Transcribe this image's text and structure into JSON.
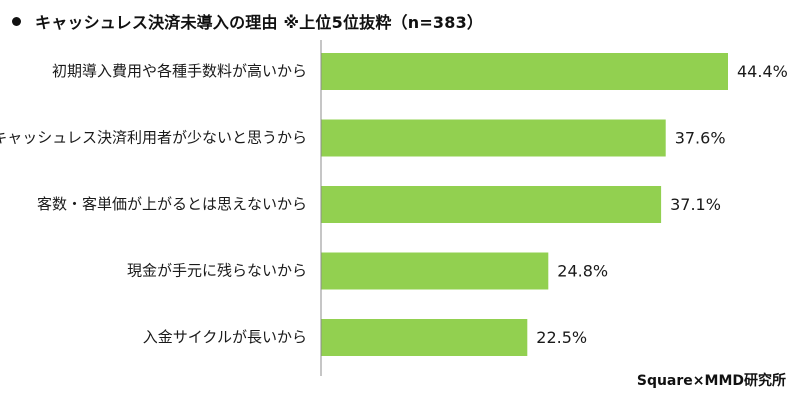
{
  "title": "キャッシュレス決済未導入の理由 ※上位5位抜粋（n=383）",
  "source": "Square×MMD研究所",
  "colors": {
    "bar": "#92d050",
    "axis": "#8c8c8c"
  },
  "chart_data": {
    "type": "bar",
    "orientation": "horizontal",
    "categories": [
      "初期導入費用や各種手数料が高いから",
      "キャッシュレス決済利用者が少ないと思うから",
      "客数・客単価が上がるとは思えないから",
      "現金が手元に残らないから",
      "入金サイクルが長いから"
    ],
    "values": [
      44.4,
      37.6,
      37.1,
      24.8,
      22.5
    ],
    "value_labels": [
      "44.4%",
      "37.6%",
      "37.1%",
      "24.8%",
      "22.5%"
    ],
    "xlim": [
      0,
      44.4
    ],
    "grid": false,
    "legend": "none"
  }
}
